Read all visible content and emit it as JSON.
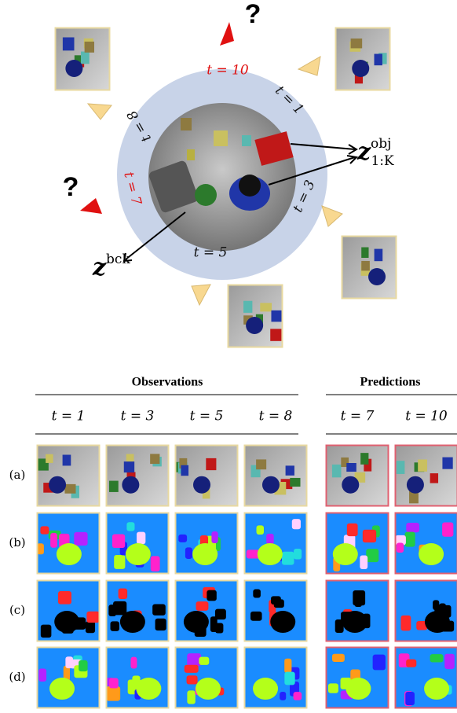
{
  "diagram": {
    "ring_labels": [
      "t = 10",
      "t = 1",
      "t = 3",
      "t = 5",
      "t = 7",
      "t = 8"
    ],
    "questions": [
      "?",
      "?"
    ],
    "latent_obj": {
      "base": "z",
      "sup": "obj",
      "sub": "1:K"
    },
    "latent_bck": {
      "base": "z",
      "sup": "bck"
    }
  },
  "grid": {
    "groups": [
      {
        "title": "Observations",
        "columns": [
          "t = 1",
          "t = 3",
          "t = 5",
          "t = 8"
        ]
      },
      {
        "title": "Predictions",
        "columns": [
          "t = 7",
          "t = 10"
        ]
      }
    ],
    "rows": [
      "(a)",
      "(b)",
      "(c)",
      "(d)"
    ]
  }
}
